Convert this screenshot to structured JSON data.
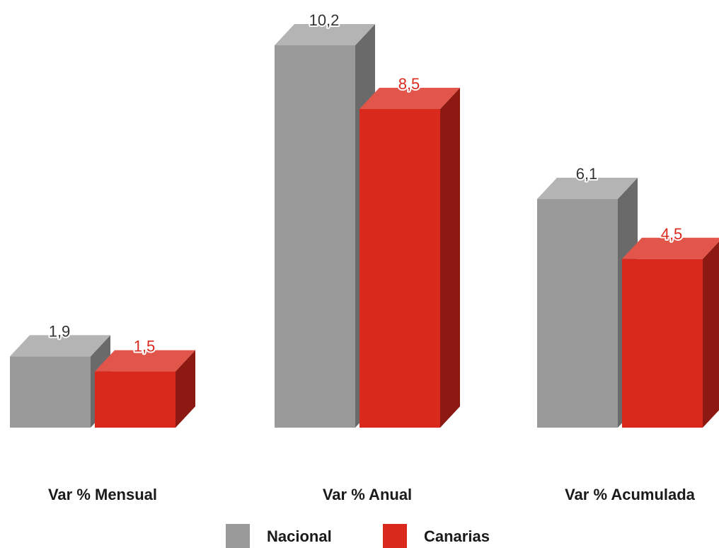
{
  "chart_data": {
    "type": "bar",
    "categories": [
      "Var % Mensual",
      "Var % Anual",
      "Var % Acumulada"
    ],
    "series": [
      {
        "name": "Nacional",
        "values": [
          1.9,
          10.2,
          6.1
        ],
        "labels": [
          "1,9",
          "10,2",
          "6,1"
        ],
        "color": "#9a9a9a",
        "side_color": "#6a6a6a",
        "top_color": "#b4b4b4",
        "label_color": "#333333"
      },
      {
        "name": "Canarias",
        "values": [
          1.5,
          8.5,
          4.5
        ],
        "labels": [
          "1,5",
          "8,5",
          "4,5"
        ],
        "color": "#d9291c",
        "side_color": "#8c1a12",
        "top_color": "#e2554a",
        "label_color": "#d9291c"
      }
    ],
    "ylim": [
      0,
      10.2
    ],
    "legend": "bottom",
    "grid": false,
    "style": "3d-column"
  }
}
